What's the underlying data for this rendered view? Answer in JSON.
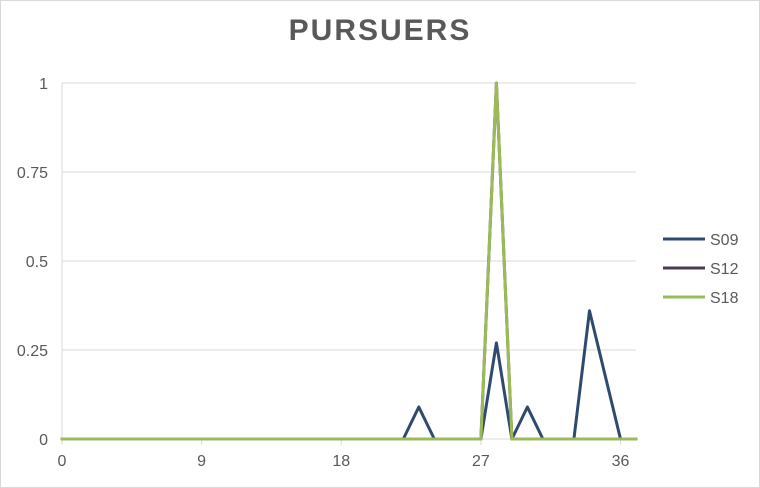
{
  "chart_data": {
    "type": "line",
    "title": "PURSUERS",
    "xlabel": "",
    "ylabel": "",
    "xlim": [
      0,
      37
    ],
    "ylim": [
      0,
      1
    ],
    "x_ticks": [
      "0",
      "9",
      "18",
      "27",
      "36"
    ],
    "y_ticks": [
      "0",
      "0.25",
      "0.5",
      "0.75",
      "1"
    ],
    "grid": "horizontal",
    "legend": "right",
    "series": [
      {
        "name": "S09",
        "color": "#2e4a6f",
        "points": [
          [
            0,
            0
          ],
          [
            22,
            0
          ],
          [
            23,
            0.09
          ],
          [
            24,
            0
          ],
          [
            27,
            0
          ],
          [
            28,
            0.27
          ],
          [
            29,
            0
          ],
          [
            30,
            0.09
          ],
          [
            31,
            0
          ],
          [
            33,
            0
          ],
          [
            34,
            0.36
          ],
          [
            35,
            0.18
          ],
          [
            36,
            0
          ],
          [
            37,
            0
          ]
        ]
      },
      {
        "name": "S12",
        "color": "#4a3a56",
        "points": [
          [
            0,
            0
          ],
          [
            27,
            0
          ],
          [
            28,
            1
          ],
          [
            29,
            0
          ],
          [
            37,
            0
          ]
        ]
      },
      {
        "name": "S18",
        "color": "#9bbb59",
        "points": [
          [
            0,
            0
          ],
          [
            27,
            0
          ],
          [
            28,
            1
          ],
          [
            29,
            0
          ],
          [
            37,
            0
          ]
        ]
      }
    ]
  }
}
